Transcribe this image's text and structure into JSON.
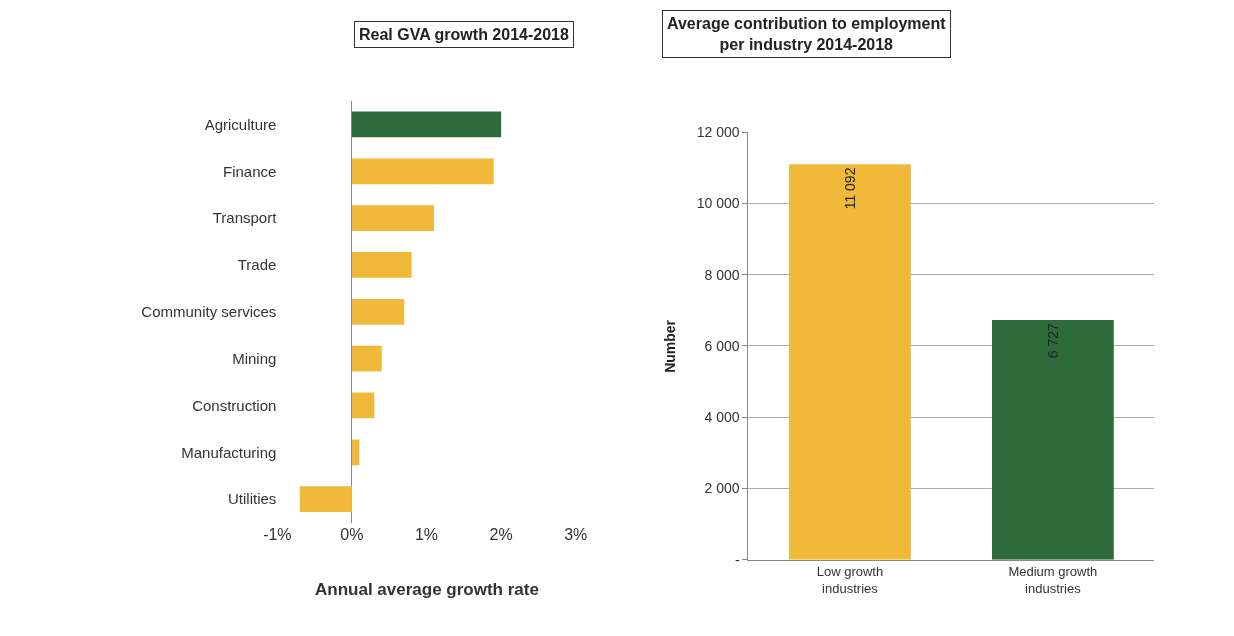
{
  "chart_data": [
    {
      "type": "bar",
      "orientation": "horizontal",
      "title": "Real GVA growth 2014-2018",
      "xlabel": "Annual average growth rate",
      "categories": [
        "Agriculture",
        "Finance",
        "Transport",
        "Trade",
        "Community services",
        "Mining",
        "Construction",
        "Manufacturing",
        "Utilities"
      ],
      "values": [
        2.0,
        1.9,
        1.1,
        0.8,
        0.7,
        0.4,
        0.3,
        0.1,
        -0.7
      ],
      "colors": [
        "#2e6b3a",
        "#f0b93a",
        "#f0b93a",
        "#f0b93a",
        "#f0b93a",
        "#f0b93a",
        "#f0b93a",
        "#f0b93a",
        "#f0b93a"
      ],
      "xlim": [
        -1,
        3
      ],
      "xticks": [
        {
          "value": -1,
          "label": "-1%"
        },
        {
          "value": 0,
          "label": "0%"
        },
        {
          "value": 1,
          "label": "1%"
        },
        {
          "value": 2,
          "label": "2%"
        },
        {
          "value": 3,
          "label": "3%"
        }
      ]
    },
    {
      "type": "bar",
      "title": "Average contribution to employment per industry 2014-2018",
      "ylabel": "Number",
      "categories": [
        "Low growth industries",
        "Medium growth industries"
      ],
      "values": [
        11092,
        6727
      ],
      "colors": [
        "#f0b93a",
        "#2e6b3a"
      ],
      "value_labels": [
        "11 092",
        "6 727"
      ],
      "ylim": [
        0,
        12000
      ],
      "yticks": [
        {
          "value": 0,
          "label": "-"
        },
        {
          "value": 2000,
          "label": "2 000"
        },
        {
          "value": 4000,
          "label": "4 000"
        },
        {
          "value": 6000,
          "label": "6 000"
        },
        {
          "value": 8000,
          "label": "8 000"
        },
        {
          "value": 10000,
          "label": "10 000"
        },
        {
          "value": 12000,
          "label": "12 000"
        }
      ],
      "grid": "y"
    }
  ]
}
